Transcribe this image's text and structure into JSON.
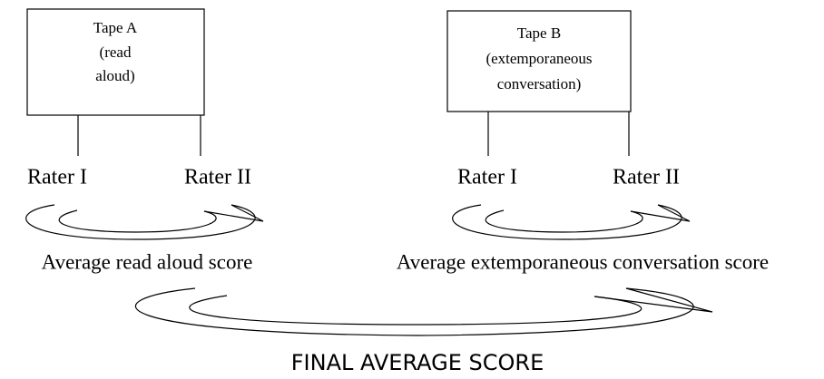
{
  "nodes": [
    {
      "lines": [
        "Tape A",
        "(read",
        "aloud)"
      ]
    },
    {
      "lines": [
        "Tape B",
        "(extemporaneous",
        "conversation)"
      ]
    }
  ],
  "raters": [
    [
      "Rater I",
      "Rater II"
    ],
    [
      "Rater I",
      "Rater II"
    ]
  ],
  "averages": [
    "Average read aloud score",
    "Average extemporaneous conversation score"
  ],
  "final": "FINAL AVERAGE SCORE"
}
